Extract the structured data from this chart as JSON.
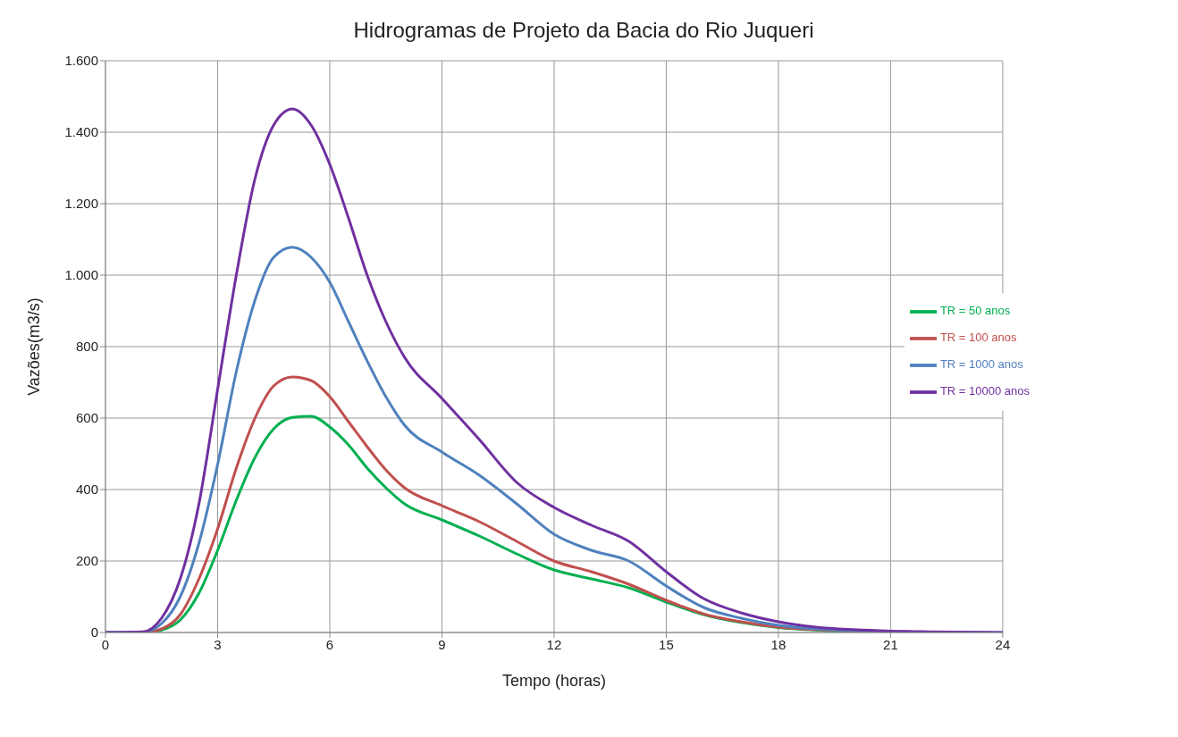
{
  "chart_data": {
    "type": "line",
    "title": "Hidrogramas de Projeto da Bacia do Rio Juqueri",
    "xlabel": "Tempo (horas)",
    "ylabel": "Vazões(m3/s)",
    "x": [
      0,
      1,
      1.5,
      2,
      2.5,
      3,
      3.5,
      4,
      4.5,
      5,
      5.5,
      6,
      6.5,
      7,
      7.5,
      8,
      9,
      10,
      11,
      12,
      13,
      14,
      15,
      16,
      17,
      18,
      19,
      20,
      21,
      22,
      24
    ],
    "series": [
      {
        "name": "TR = 50 anos",
        "color": "#00b050",
        "values": [
          0,
          0,
          7,
          35,
          110,
          230,
          370,
          490,
          570,
          602,
          605,
          575,
          525,
          460,
          405,
          360,
          315,
          270,
          220,
          175,
          150,
          125,
          85,
          50,
          28,
          14,
          7,
          3,
          null,
          null,
          null
        ]
      },
      {
        "name": "TR = 100 anos",
        "color": "#c0504d",
        "values": [
          0,
          0,
          10,
          50,
          150,
          290,
          460,
          600,
          690,
          715,
          705,
          660,
          590,
          520,
          455,
          405,
          355,
          310,
          255,
          200,
          170,
          135,
          90,
          52,
          30,
          15,
          8,
          4,
          2,
          null,
          null
        ]
      },
      {
        "name": "TR = 1000 anos",
        "color": "#4f81bd",
        "values": [
          0,
          1,
          25,
          100,
          250,
          470,
          730,
          930,
          1050,
          1078,
          1050,
          980,
          870,
          760,
          660,
          580,
          505,
          440,
          360,
          275,
          230,
          200,
          130,
          70,
          40,
          20,
          10,
          5,
          3,
          1,
          0
        ]
      },
      {
        "name": "TR = 10000 anos",
        "color": "#7030a0",
        "values": [
          0,
          2,
          40,
          150,
          360,
          680,
          1000,
          1270,
          1420,
          1465,
          1420,
          1310,
          1160,
          1000,
          870,
          770,
          655,
          540,
          420,
          350,
          300,
          255,
          170,
          95,
          55,
          30,
          15,
          8,
          4,
          2,
          0
        ]
      }
    ],
    "xlim": [
      0,
      24
    ],
    "xticks": [
      0,
      3,
      6,
      9,
      12,
      15,
      18,
      21,
      24
    ],
    "ylim": [
      0,
      1600
    ],
    "yticks": [
      0,
      200,
      400,
      600,
      800,
      {
        "value": 1000,
        "label": "1.000"
      },
      {
        "value": 1200,
        "label": "1.200"
      },
      {
        "value": 1400,
        "label": "1.400"
      },
      {
        "value": 1600,
        "label": "1.600"
      }
    ],
    "grid": true,
    "legend": "right",
    "marker": "none",
    "line_style": "solid"
  }
}
